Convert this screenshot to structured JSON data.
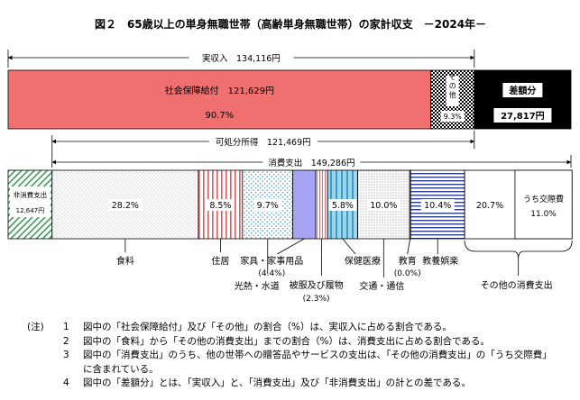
{
  "title": "図２　65歳以上の単身無職世帯（高齢単身無職世帯）の家計収支　－2024年－",
  "chart_data": {
    "type": "bar",
    "income": {
      "label": "実収入",
      "value_text": "134,116円",
      "value": 134116,
      "segments": [
        {
          "key": "social",
          "label": "社会保障給付",
          "value_text": "121,629円",
          "value": 121629,
          "pct_text": "90.7%",
          "pct": 90.7,
          "color": "#f07070"
        },
        {
          "key": "other",
          "label": "その他",
          "pct_text": "9.3%",
          "pct": 9.3
        },
        {
          "key": "deficit",
          "label": "差額分",
          "value_text": "27,817円",
          "value": 27817,
          "color": "#000000"
        }
      ]
    },
    "disposable": {
      "label": "可処分所得",
      "value_text": "121,469円",
      "value": 121469
    },
    "consumption": {
      "label": "消費支出",
      "value_text": "149,286円",
      "value": 149286
    },
    "non_consumption": {
      "label": "非消費支出",
      "value_text": "12,647円",
      "value": 12647
    },
    "expenditure": [
      {
        "key": "food",
        "label": "食料",
        "pct_text": "28.2%",
        "pct": 28.2
      },
      {
        "key": "housing",
        "label": "住居",
        "pct_text": "8.5%",
        "pct": 8.5
      },
      {
        "key": "utilities",
        "label": "光熱・水道",
        "pct_text": "9.7%",
        "pct": 9.7
      },
      {
        "key": "furniture",
        "label": "家具・家事用品",
        "pct_text": "(4.4%)",
        "pct": 4.4,
        "color": "#a8a4f4"
      },
      {
        "key": "clothing",
        "label": "被服及び履物",
        "pct_text": "(2.3%)",
        "pct": 2.3
      },
      {
        "key": "medical",
        "label": "保健医療",
        "pct_text": "5.8%",
        "pct": 5.8
      },
      {
        "key": "transport",
        "label": "交通・通信",
        "pct_text": "10.0%",
        "pct": 10.0
      },
      {
        "key": "education",
        "label": "教育",
        "pct_text": "(0.0%)",
        "pct": 0.0
      },
      {
        "key": "recreation",
        "label": "教養娯楽",
        "pct_text": "10.4%",
        "pct": 10.4
      },
      {
        "key": "other_consumption",
        "label": "その他の消費支出",
        "pct_text": "20.7%",
        "pct": 20.7,
        "sub": {
          "label": "うち交際費",
          "pct_text": "11.0%",
          "pct": 11.0
        }
      }
    ]
  },
  "notes": {
    "marker": "(注)",
    "items": [
      {
        "num": "1",
        "text": "図中の「社会保障給付」及び「その他」の割合（%）は、実収入に占める割合である。"
      },
      {
        "num": "2",
        "text": "図中の「食料」から「その他の消費支出」までの割合（%）は、消費支出に占める割合である。"
      },
      {
        "num": "3",
        "text": "図中の「消費支出」のうち、他の世帯への贈答品やサービスの支出は、「その他の消費支出」の「うち交際費」",
        "cont": "に含まれている。"
      },
      {
        "num": "4",
        "text": "図中の「差額分」とは、「実収入」と、「消費支出」及び「非消費支出」の計との差である。"
      }
    ]
  }
}
